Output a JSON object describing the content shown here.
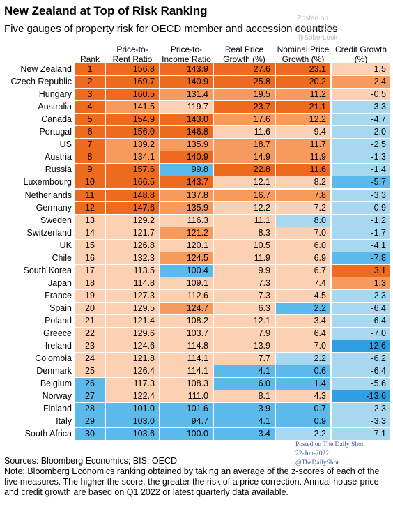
{
  "header": {
    "title": "New Zealand at Top of Risk Ranking",
    "subtitle": "Five gauges of property risk for OECD member and accession countries"
  },
  "table": {
    "columns": [
      "Rank",
      "Price-to-\nRent Ratio",
      "Price-to-\nIncome Ratio",
      "Real Price\nGrowth (%)",
      "Nominal Price\nGrowth (%)",
      "Credit Growth\n(%)"
    ],
    "rows": [
      [
        "New Zealand",
        "1",
        "156.8",
        "143.9",
        "27.6",
        "23.1",
        "1.5"
      ],
      [
        "Czech Republic",
        "2",
        "169.7",
        "140.9",
        "25.8",
        "20.2",
        "2.4"
      ],
      [
        "Hungary",
        "3",
        "160.5",
        "131.4",
        "19.5",
        "11.2",
        "-0.5"
      ],
      [
        "Australia",
        "4",
        "141.5",
        "119.7",
        "23.7",
        "21.1",
        "-3.3"
      ],
      [
        "Canada",
        "5",
        "154.9",
        "143.0",
        "17.6",
        "12.2",
        "-4.7"
      ],
      [
        "Portugal",
        "6",
        "156.0",
        "146.8",
        "11.6",
        "9.4",
        "-2.0"
      ],
      [
        "US",
        "7",
        "139.2",
        "135.9",
        "18.7",
        "11.7",
        "-2.5"
      ],
      [
        "Austria",
        "8",
        "134.1",
        "140.9",
        "14.9",
        "11.9",
        "-1.3"
      ],
      [
        "Russia",
        "9",
        "157.6",
        "99.8",
        "22.8",
        "11.6",
        "-1.4"
      ],
      [
        "Luxembourg",
        "10",
        "166.5",
        "143.7",
        "12.1",
        "8.2",
        "-5.7"
      ],
      [
        "Netherlands",
        "11",
        "148.8",
        "137.8",
        "16.7",
        "7.8",
        "-3.3"
      ],
      [
        "Germany",
        "12",
        "147.6",
        "135.9",
        "12.2",
        "7.2",
        "-0.9"
      ],
      [
        "Sweden",
        "13",
        "129.2",
        "116.3",
        "11.1",
        "8.0",
        "-1.2"
      ],
      [
        "Switzerland",
        "14",
        "121.7",
        "121.2",
        "8.3",
        "7.0",
        "-1.7"
      ],
      [
        "UK",
        "15",
        "126.8",
        "120.1",
        "10.5",
        "6.0",
        "-4.1"
      ],
      [
        "Chile",
        "16",
        "132.3",
        "124.5",
        "11.9",
        "6.9",
        "-7.8"
      ],
      [
        "South Korea",
        "17",
        "113.5",
        "100.4",
        "9.9",
        "6.7",
        "3.1"
      ],
      [
        "Japan",
        "18",
        "114.8",
        "109.1",
        "7.3",
        "7.4",
        "1.3"
      ],
      [
        "France",
        "19",
        "127.3",
        "112.6",
        "7.3",
        "4.5",
        "-2.3"
      ],
      [
        "Spain",
        "20",
        "129.5",
        "124.7",
        "6.3",
        "2.2",
        "-6.4"
      ],
      [
        "Poland",
        "21",
        "121.4",
        "108.2",
        "12.1",
        "3.4",
        "-6.4"
      ],
      [
        "Greece",
        "22",
        "129.6",
        "103.7",
        "7.9",
        "6.4",
        "-7.0"
      ],
      [
        "Ireland",
        "23",
        "124.6",
        "114.8",
        "13.9",
        "7.0",
        "-12.6"
      ],
      [
        "Colombia",
        "24",
        "121.8",
        "114.1",
        "7.7",
        "2.2",
        "-6.2"
      ],
      [
        "Denmark",
        "25",
        "126.4",
        "114.1",
        "4.1",
        "0.6",
        "-6.4"
      ],
      [
        "Belgium",
        "26",
        "117.3",
        "108.3",
        "6.0",
        "1.4",
        "-5.6"
      ],
      [
        "Norway",
        "27",
        "122.4",
        "111.0",
        "8.1",
        "4.3",
        "-13.6"
      ],
      [
        "Finland",
        "28",
        "101.0",
        "101.6",
        "3.9",
        "0.7",
        "-2.3"
      ],
      [
        "Italy",
        "29",
        "103.0",
        "94.7",
        "4.1",
        "0.9",
        "-3.3"
      ],
      [
        "South Africa",
        "30",
        "103.6",
        "100.0",
        "3.4",
        "-2.2",
        "-7.1"
      ]
    ],
    "colors": [
      [
        "#ee6a1e",
        "#ee6a1e",
        "#ee6a1e",
        "#ee6a1e",
        "#ee6a1e",
        "#fcd0b2"
      ],
      [
        "#ee6a1e",
        "#ee6a1e",
        "#ee6a1e",
        "#ee6a1e",
        "#ee6a1e",
        "#f79a5e"
      ],
      [
        "#ee6a1e",
        "#ee6a1e",
        "#f79a5e",
        "#f79a5e",
        "#f79a5e",
        "#fcd0b2"
      ],
      [
        "#ee6a1e",
        "#f79a5e",
        "#fcd0b2",
        "#ee6a1e",
        "#ee6a1e",
        "#a8d8f0"
      ],
      [
        "#ee6a1e",
        "#ee6a1e",
        "#ee6a1e",
        "#f79a5e",
        "#f79a5e",
        "#a8d8f0"
      ],
      [
        "#ee6a1e",
        "#ee6a1e",
        "#ee6a1e",
        "#fcd0b2",
        "#fcd0b2",
        "#a8d8f0"
      ],
      [
        "#ee6a1e",
        "#f79a5e",
        "#f79a5e",
        "#f79a5e",
        "#f79a5e",
        "#a8d8f0"
      ],
      [
        "#ee6a1e",
        "#f79a5e",
        "#ee6a1e",
        "#f79a5e",
        "#f79a5e",
        "#a8d8f0"
      ],
      [
        "#ee6a1e",
        "#ee6a1e",
        "#5bbaea",
        "#ee6a1e",
        "#ee6a1e",
        "#a8d8f0"
      ],
      [
        "#ee6a1e",
        "#ee6a1e",
        "#ee6a1e",
        "#fcd0b2",
        "#fcd0b2",
        "#5bbaea"
      ],
      [
        "#ee6a1e",
        "#ee6a1e",
        "#f79a5e",
        "#f79a5e",
        "#f79a5e",
        "#a8d8f0"
      ],
      [
        "#ee6a1e",
        "#ee6a1e",
        "#f79a5e",
        "#fcd0b2",
        "#fcd0b2",
        "#a8d8f0"
      ],
      [
        "#fcd0b2",
        "#fcd0b2",
        "#fcd0b2",
        "#fcd0b2",
        "#a8d8f0",
        "#a8d8f0"
      ],
      [
        "#fcd0b2",
        "#fcd0b2",
        "#f79a5e",
        "#fcd0b2",
        "#fcd0b2",
        "#a8d8f0"
      ],
      [
        "#fcd0b2",
        "#fcd0b2",
        "#fcd0b2",
        "#fcd0b2",
        "#fcd0b2",
        "#a8d8f0"
      ],
      [
        "#fcd0b2",
        "#fcd0b2",
        "#f79a5e",
        "#fcd0b2",
        "#fcd0b2",
        "#5bbaea"
      ],
      [
        "#fcd0b2",
        "#fcd0b2",
        "#5bbaea",
        "#fcd0b2",
        "#fcd0b2",
        "#ee6a1e"
      ],
      [
        "#fcd0b2",
        "#fcd0b2",
        "#fcd0b2",
        "#fcd0b2",
        "#fcd0b2",
        "#f79a5e"
      ],
      [
        "#fcd0b2",
        "#fcd0b2",
        "#fcd0b2",
        "#fcd0b2",
        "#fcd0b2",
        "#a8d8f0"
      ],
      [
        "#fcd0b2",
        "#fcd0b2",
        "#f79a5e",
        "#fcd0b2",
        "#5bbaea",
        "#a8d8f0"
      ],
      [
        "#fcd0b2",
        "#fcd0b2",
        "#fcd0b2",
        "#fcd0b2",
        "#fcd0b2",
        "#a8d8f0"
      ],
      [
        "#fcd0b2",
        "#fcd0b2",
        "#fcd0b2",
        "#fcd0b2",
        "#fcd0b2",
        "#a8d8f0"
      ],
      [
        "#fcd0b2",
        "#fcd0b2",
        "#fcd0b2",
        "#fcd0b2",
        "#fcd0b2",
        "#2f9fe3"
      ],
      [
        "#fcd0b2",
        "#fcd0b2",
        "#fcd0b2",
        "#fcd0b2",
        "#a8d8f0",
        "#a8d8f0"
      ],
      [
        "#fcd0b2",
        "#fcd0b2",
        "#fcd0b2",
        "#5bbaea",
        "#5bbaea",
        "#a8d8f0"
      ],
      [
        "#5bbaea",
        "#fcd0b2",
        "#fcd0b2",
        "#5bbaea",
        "#5bbaea",
        "#a8d8f0"
      ],
      [
        "#5bbaea",
        "#fcd0b2",
        "#fcd0b2",
        "#fcd0b2",
        "#fcd0b2",
        "#2f9fe3"
      ],
      [
        "#5bbaea",
        "#5bbaea",
        "#5bbaea",
        "#5bbaea",
        "#5bbaea",
        "#a8d8f0"
      ],
      [
        "#5bbaea",
        "#5bbaea",
        "#5bbaea",
        "#5bbaea",
        "#5bbaea",
        "#a8d8f0"
      ],
      [
        "#5bbaea",
        "#5bbaea",
        "#5bbaea",
        "#5bbaea",
        "#a8d8f0",
        "#a8d8f0"
      ]
    ]
  },
  "watermarks": [
    "Posted on\n22-Jun-2022\n@SoberLook",
    "Posted on The Daily Shot\n22-Jun-2022\n@TheDailyShot"
  ],
  "footer": {
    "sources": "Sources: Bloomberg Economics; BIS; OECD",
    "note": "Note: Bloomberg Economics ranking obtained by taking an average of the z-scores of each of the five measures. The higher the score, the greater the risk of a price correction. Annual house-price and credit growth are based on Q1 2022 or latest quarterly data available."
  }
}
